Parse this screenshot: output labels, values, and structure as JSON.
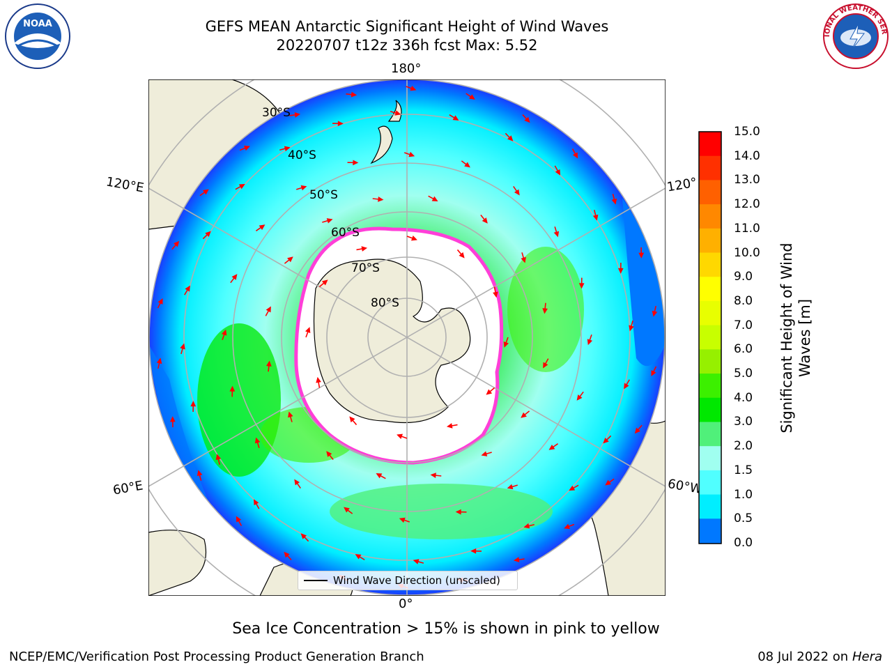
{
  "title_line1": "GEFS MEAN Antarctic Significant Height of Wind Waves",
  "title_line2": "20220707 t12z 336h fcst   Max: 5.52",
  "longitude_labels": {
    "top": "180°",
    "bottom": "0°",
    "left_upper": "120°E",
    "left_lower": "60°E",
    "right_upper": "120°",
    "right_lower": "60°W"
  },
  "latitude_labels": [
    "30°S",
    "40°S",
    "50°S",
    "60°S",
    "70°S",
    "80°S"
  ],
  "legend_label": "Wind Wave Direction (unscaled)",
  "colorbar": {
    "label_line1": "Significant Height of Wind",
    "label_line2": "Waves [m]",
    "ticks": [
      "15.0",
      "14.0",
      "13.0",
      "12.0",
      "11.0",
      "10.0",
      "9.0",
      "8.0",
      "7.0",
      "6.0",
      "5.0",
      "4.0",
      "3.0",
      "2.0",
      "1.5",
      "1.0",
      "0.5",
      "0.0"
    ],
    "colors": [
      "#ff0000",
      "#ff3000",
      "#ff6000",
      "#ff8800",
      "#ffb000",
      "#ffd800",
      "#ffff00",
      "#e8ff00",
      "#c8ff00",
      "#96f000",
      "#3cf000",
      "#00e800",
      "#50f07a",
      "#a0fff0",
      "#50ffff",
      "#00eeff",
      "#0078ff",
      "#0000ff"
    ]
  },
  "colors": {
    "land": "#efedda",
    "ice": "#ffffff",
    "arrow": "#ff0000",
    "grid": "#b0b0b0"
  },
  "sea_ice_note": "Sea Ice Concentration > 15% is shown in pink to yellow",
  "footer_left": "NCEP/EMC/Verification Post Processing Product Generation Branch",
  "footer_right_date": "08 Jul 2022 on",
  "footer_right_host": "Hera",
  "logos": {
    "left": "NOAA",
    "right": "NATIONAL WEATHER SERVICE"
  }
}
